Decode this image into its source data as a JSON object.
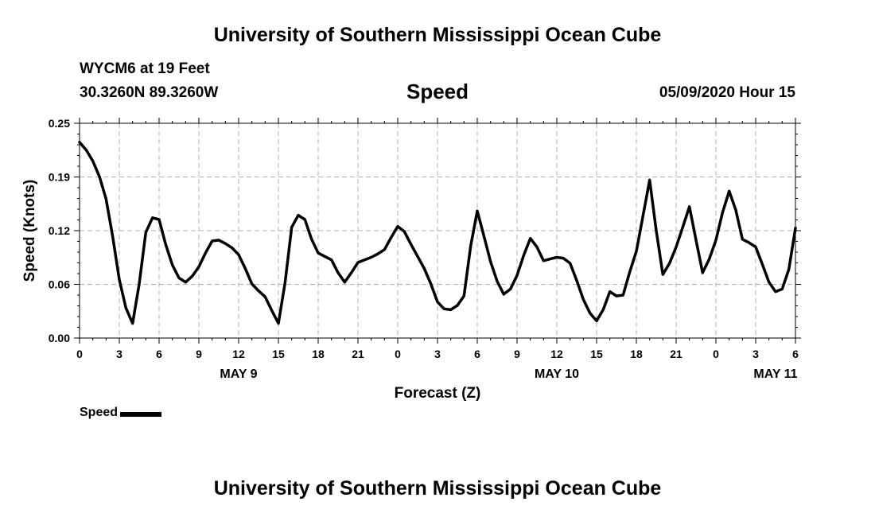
{
  "header": {
    "title": "University of Southern Mississippi Ocean Cube",
    "station": "WYCM6 at 19 Feet",
    "coords": "30.3260N 89.3260W",
    "variable": "Speed",
    "datetime": "05/09/2020 Hour 15"
  },
  "footer": {
    "title": "University of Southern Mississippi Ocean Cube"
  },
  "legend": {
    "label": "Speed"
  },
  "colors": {
    "line": "#000000",
    "grid": "#b0b0b0",
    "background": "#ffffff"
  },
  "chart_data": {
    "type": "line",
    "title": "Speed",
    "xlabel": "Forecast (Z)",
    "ylabel": "Speed (Knots)",
    "xlim": [
      0,
      54
    ],
    "ylim": [
      0,
      0.25
    ],
    "yticks": [
      "0.00",
      "0.06",
      "0.12",
      "0.19",
      "0.25"
    ],
    "ytick_values": [
      0,
      0.0625,
      0.125,
      0.1875,
      0.25
    ],
    "xticks": [
      {
        "x": 0,
        "label": "0"
      },
      {
        "x": 3,
        "label": "3"
      },
      {
        "x": 6,
        "label": "6"
      },
      {
        "x": 9,
        "label": "9"
      },
      {
        "x": 12,
        "label": "12"
      },
      {
        "x": 15,
        "label": "15"
      },
      {
        "x": 18,
        "label": "18"
      },
      {
        "x": 21,
        "label": "21"
      },
      {
        "x": 24,
        "label": "0"
      },
      {
        "x": 27,
        "label": "3"
      },
      {
        "x": 30,
        "label": "6"
      },
      {
        "x": 33,
        "label": "9"
      },
      {
        "x": 36,
        "label": "12"
      },
      {
        "x": 39,
        "label": "15"
      },
      {
        "x": 42,
        "label": "18"
      },
      {
        "x": 45,
        "label": "21"
      },
      {
        "x": 48,
        "label": "0"
      },
      {
        "x": 51,
        "label": "3"
      },
      {
        "x": 54,
        "label": "6"
      }
    ],
    "day_labels": [
      {
        "x": 12,
        "label": "MAY 9"
      },
      {
        "x": 36,
        "label": "MAY 10"
      },
      {
        "x": 52.5,
        "label": "MAY 11"
      }
    ],
    "grid": true,
    "series": [
      {
        "name": "Speed",
        "x": [
          0,
          0.5,
          1,
          1.5,
          2,
          2.5,
          3,
          3.5,
          4,
          4.5,
          5,
          5.5,
          6,
          6.5,
          7,
          7.5,
          8,
          8.5,
          9,
          9.5,
          10,
          10.5,
          11,
          11.5,
          12,
          12.5,
          13,
          13.5,
          14,
          14.5,
          15,
          15.5,
          16,
          16.5,
          17,
          17.5,
          18,
          18.5,
          19,
          19.5,
          20,
          20.5,
          21,
          21.5,
          22,
          22.5,
          23,
          23.5,
          24,
          24.5,
          25,
          25.5,
          26,
          26.5,
          27,
          27.5,
          28,
          28.5,
          29,
          29.5,
          30,
          30.5,
          31,
          31.5,
          32,
          32.5,
          33,
          33.5,
          34,
          34.5,
          35,
          35.5,
          36,
          36.5,
          37,
          37.5,
          38,
          38.5,
          39,
          39.5,
          40,
          40.5,
          41,
          41.5,
          42,
          42.5,
          43,
          43.5,
          44,
          44.5,
          45,
          45.5,
          46,
          46.5,
          47,
          47.5,
          48,
          48.5,
          49,
          49.5,
          50,
          50.5,
          51,
          51.5,
          52,
          52.5,
          53,
          53.5,
          54
        ],
        "values": [
          0.228,
          0.219,
          0.206,
          0.188,
          0.162,
          0.118,
          0.068,
          0.035,
          0.017,
          0.063,
          0.123,
          0.14,
          0.138,
          0.109,
          0.085,
          0.07,
          0.065,
          0.072,
          0.083,
          0.099,
          0.113,
          0.114,
          0.11,
          0.105,
          0.097,
          0.081,
          0.063,
          0.055,
          0.048,
          0.032,
          0.017,
          0.064,
          0.129,
          0.143,
          0.138,
          0.115,
          0.099,
          0.095,
          0.091,
          0.076,
          0.065,
          0.076,
          0.088,
          0.091,
          0.094,
          0.098,
          0.103,
          0.117,
          0.13,
          0.124,
          0.109,
          0.095,
          0.081,
          0.063,
          0.042,
          0.034,
          0.033,
          0.038,
          0.049,
          0.107,
          0.148,
          0.119,
          0.089,
          0.066,
          0.051,
          0.057,
          0.073,
          0.096,
          0.116,
          0.106,
          0.09,
          0.092,
          0.094,
          0.093,
          0.087,
          0.067,
          0.045,
          0.029,
          0.02,
          0.033,
          0.054,
          0.049,
          0.05,
          0.077,
          0.101,
          0.142,
          0.184,
          0.125,
          0.074,
          0.087,
          0.106,
          0.129,
          0.153,
          0.114,
          0.076,
          0.092,
          0.114,
          0.146,
          0.171,
          0.149,
          0.115,
          0.111,
          0.106,
          0.086,
          0.065,
          0.054,
          0.057,
          0.08,
          0.128
        ]
      }
    ]
  }
}
